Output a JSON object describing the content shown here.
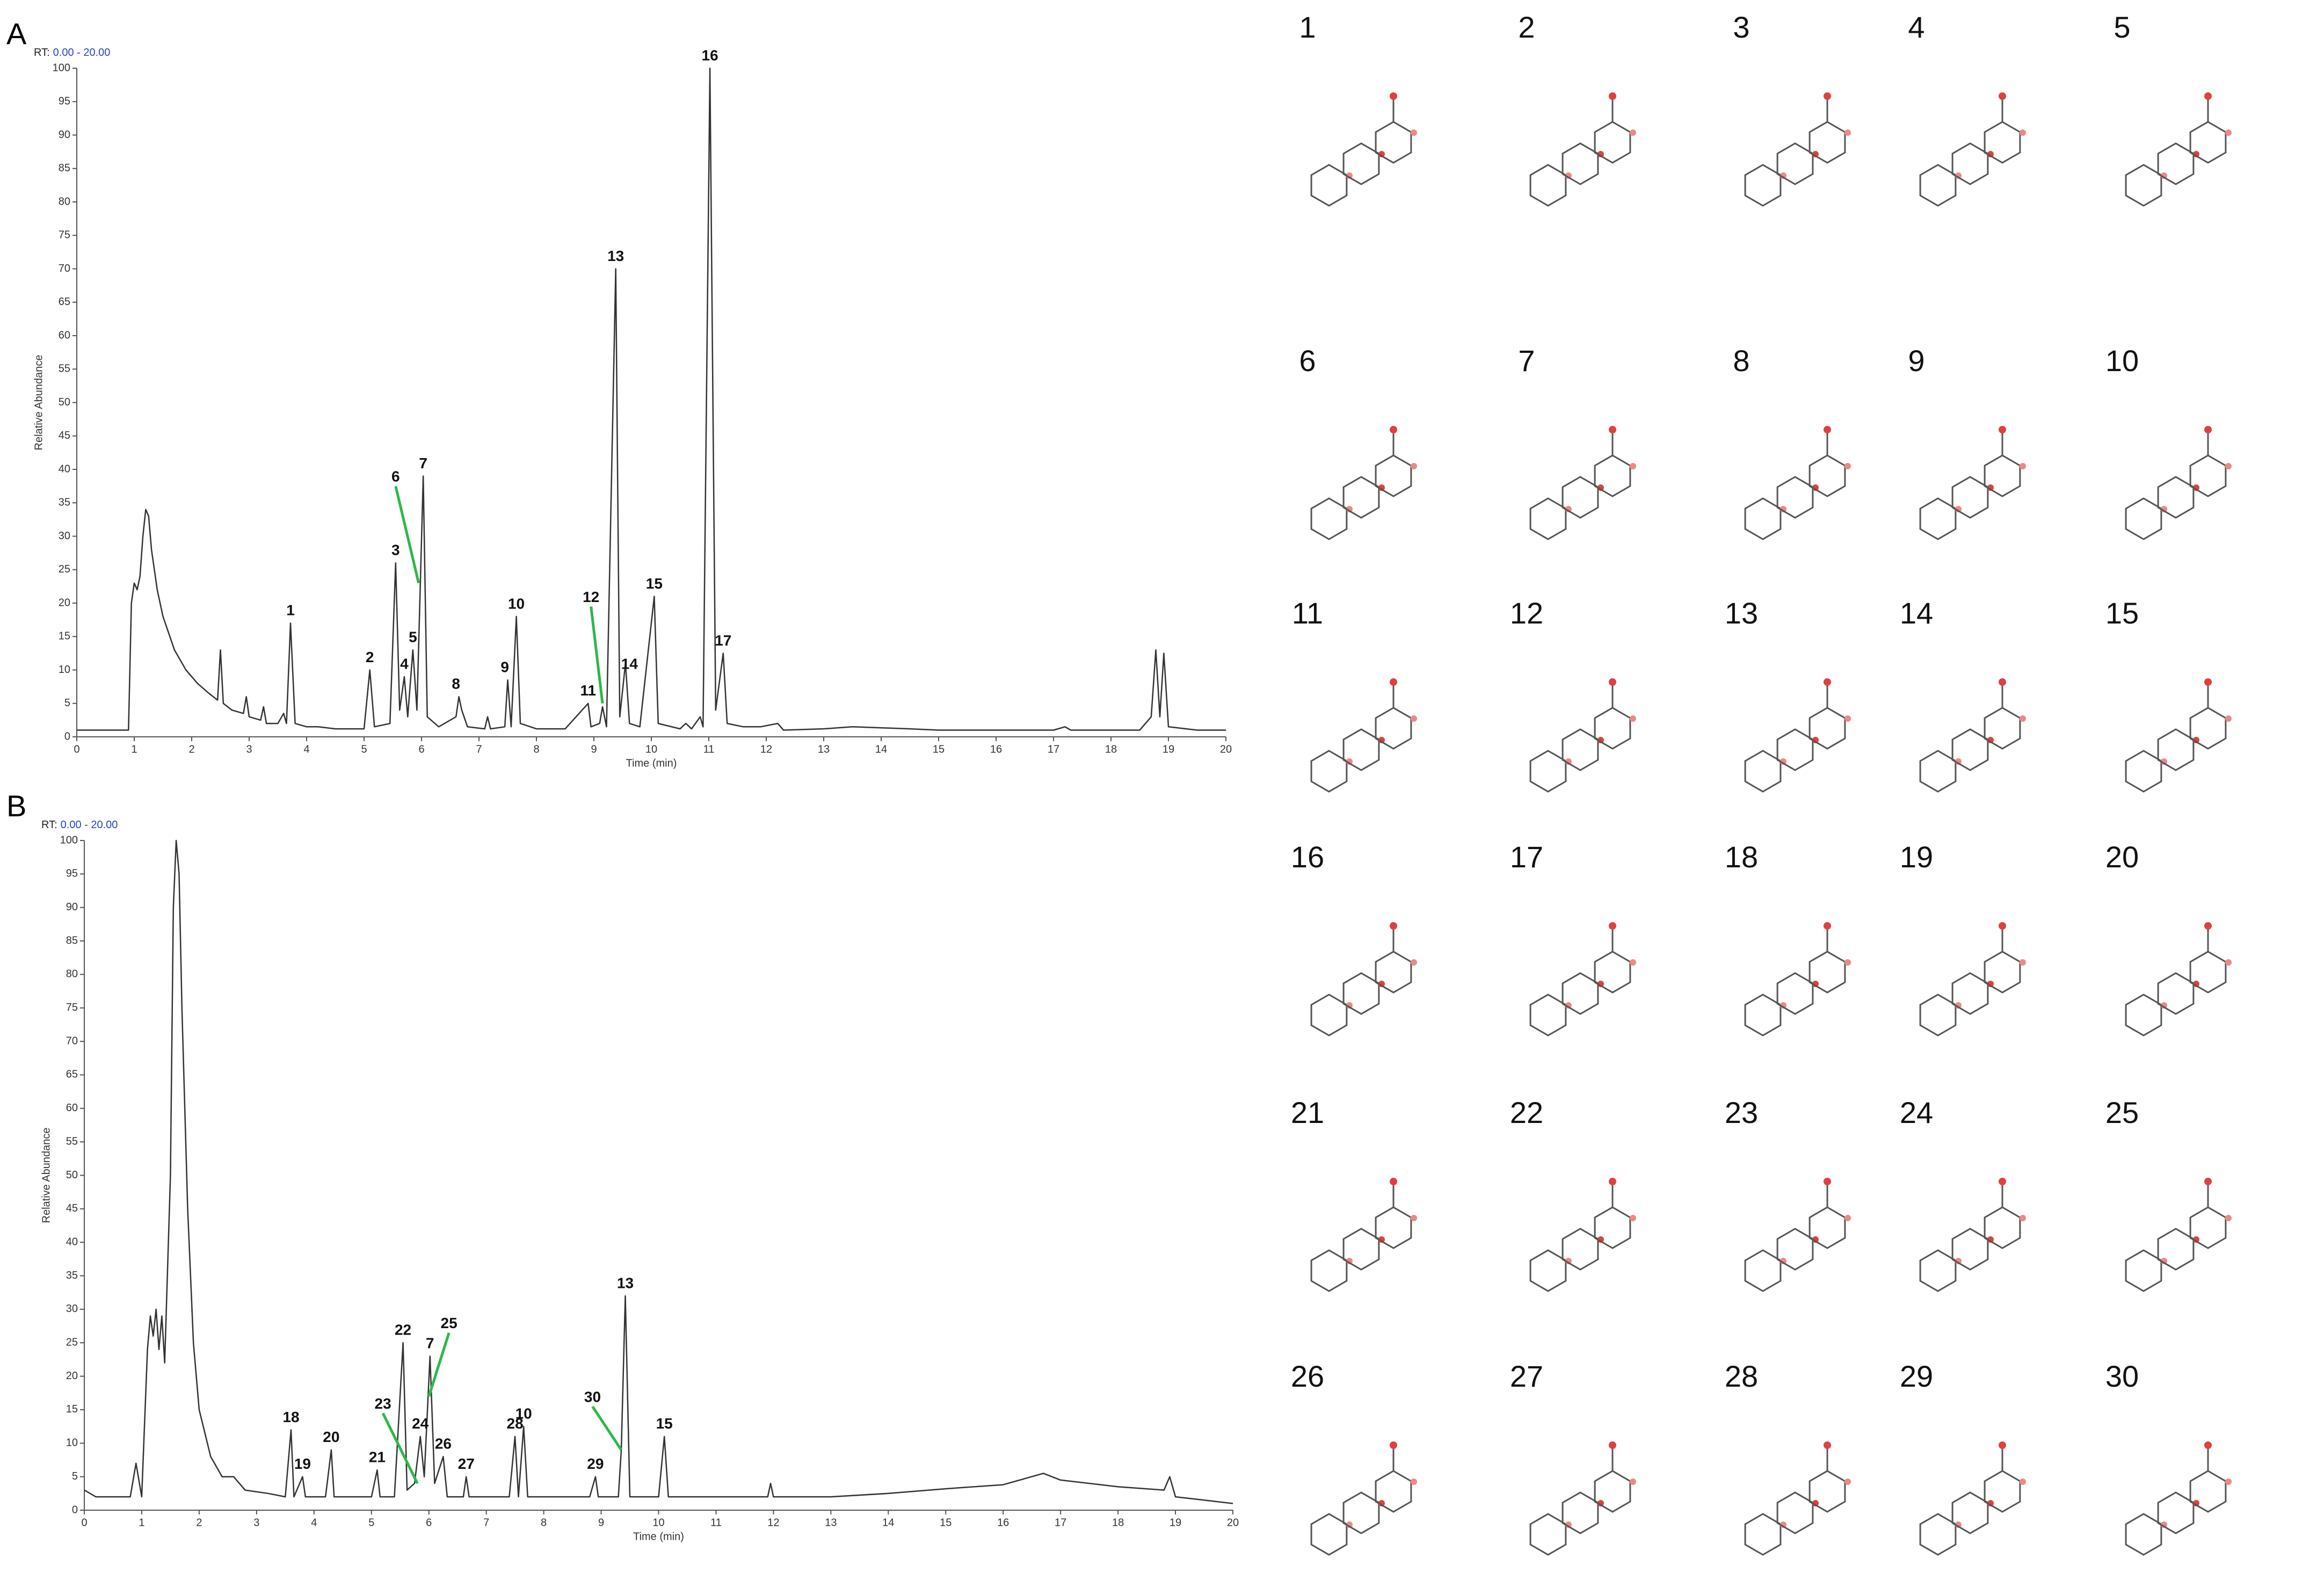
{
  "chart_data": [
    {
      "type": "line",
      "panel": "A",
      "rt_label": "RT:",
      "rt_range": "0.00 - 20.00",
      "xlabel": "Time (min)",
      "ylabel": "Relative Abundance",
      "xlim": [
        0,
        20
      ],
      "ylim": [
        0,
        100
      ],
      "xticks": [
        0,
        1,
        2,
        3,
        4,
        5,
        6,
        7,
        8,
        9,
        10,
        11,
        12,
        13,
        14,
        15,
        16,
        17,
        18,
        19,
        20
      ],
      "yticks": [
        0,
        5,
        10,
        15,
        20,
        25,
        30,
        35,
        40,
        45,
        50,
        55,
        60,
        65,
        70,
        75,
        80,
        85,
        90,
        95,
        100
      ],
      "leader_color": "#2db84b",
      "x": [
        0,
        0.9,
        0.95,
        1.0,
        1.05,
        1.1,
        1.15,
        1.2,
        1.25,
        1.3,
        1.4,
        1.5,
        1.7,
        1.9,
        2.1,
        2.3,
        2.45,
        2.5,
        2.55,
        2.7,
        2.9,
        2.95,
        3.0,
        3.2,
        3.25,
        3.3,
        3.5,
        3.6,
        3.65,
        3.72,
        3.8,
        4.0,
        4.2,
        4.5,
        5.0,
        5.1,
        5.18,
        5.45,
        5.55,
        5.62,
        5.7,
        5.76,
        5.85,
        5.92,
        6.03,
        6.1,
        6.3,
        6.6,
        6.65,
        6.7,
        6.8,
        7.1,
        7.15,
        7.2,
        7.45,
        7.5,
        7.56,
        7.65,
        7.72,
        8.0,
        8.5,
        8.9,
        8.95,
        9.1,
        9.15,
        9.22,
        9.38,
        9.45,
        9.55,
        9.62,
        9.8,
        10.05,
        10.12,
        10.5,
        10.6,
        10.7,
        10.85,
        10.9,
        11.02,
        11.12,
        11.25,
        11.32,
        11.6,
        11.9,
        12.2,
        12.3,
        13,
        13.5,
        14.5,
        15,
        16,
        17,
        17.2,
        17.3,
        18.5,
        18.7,
        18.78,
        18.85,
        18.92,
        19.0,
        19.5,
        20
      ],
      "series": [
        {
          "color": "#333333",
          "values": [
            1,
            1,
            20,
            23,
            22,
            24,
            30,
            34,
            33,
            28,
            22,
            18,
            13,
            10,
            8,
            6.5,
            5.5,
            13,
            5,
            4,
            3.5,
            6,
            3,
            2.5,
            4.5,
            2,
            2,
            3.5,
            2,
            17,
            2,
            1.5,
            1.5,
            1.2,
            1.2,
            10,
            1.5,
            2,
            26,
            4,
            9,
            3,
            13,
            4,
            39,
            3,
            1.5,
            3,
            6,
            4,
            1.5,
            1.2,
            3,
            1.2,
            1.5,
            8.5,
            1.5,
            18,
            2,
            1.2,
            1.2,
            5,
            1.5,
            2,
            4.5,
            1.5,
            70,
            3,
            11,
            2,
            1.5,
            21,
            2,
            1.2,
            2,
            1.2,
            3,
            1.5,
            100,
            4,
            12.5,
            2,
            1.5,
            1.5,
            2,
            1,
            1.2,
            1.5,
            1.2,
            1,
            1,
            1,
            1.5,
            1,
            1,
            3,
            13,
            3,
            12.5,
            1.5,
            1,
            1
          ]
        }
      ],
      "annotations": [
        {
          "text": "1",
          "x": 3.72,
          "y": 17
        },
        {
          "text": "2",
          "x": 5.1,
          "y": 10
        },
        {
          "text": "3",
          "x": 5.55,
          "y": 26
        },
        {
          "text": "4",
          "x": 5.7,
          "y": 9
        },
        {
          "text": "5",
          "x": 5.85,
          "y": 13
        },
        {
          "text": "6",
          "x": 5.55,
          "y": 37,
          "target": [
            5.95,
            23
          ]
        },
        {
          "text": "7",
          "x": 6.03,
          "y": 39
        },
        {
          "text": "8",
          "x": 6.6,
          "y": 6
        },
        {
          "text": "9",
          "x": 7.45,
          "y": 8.5
        },
        {
          "text": "10",
          "x": 7.65,
          "y": 18
        },
        {
          "text": "11",
          "x": 8.9,
          "y": 5
        },
        {
          "text": "12",
          "x": 8.95,
          "y": 19,
          "target": [
            9.15,
            5
          ]
        },
        {
          "text": "13",
          "x": 9.38,
          "y": 70
        },
        {
          "text": "14",
          "x": 9.62,
          "y": 9
        },
        {
          "text": "15",
          "x": 10.05,
          "y": 21
        },
        {
          "text": "16",
          "x": 11.02,
          "y": 100
        },
        {
          "text": "17",
          "x": 11.25,
          "y": 12.5
        }
      ]
    },
    {
      "type": "line",
      "panel": "B",
      "rt_label": "RT:",
      "rt_range": "0.00 - 20.00",
      "xlabel": "Time (min)",
      "ylabel": "Relative Abundance",
      "xlim": [
        0,
        20
      ],
      "ylim": [
        0,
        100
      ],
      "xticks": [
        0,
        1,
        2,
        3,
        4,
        5,
        6,
        7,
        8,
        9,
        10,
        11,
        12,
        13,
        14,
        15,
        16,
        17,
        18,
        19,
        20
      ],
      "yticks": [
        0,
        5,
        10,
        15,
        20,
        25,
        30,
        35,
        40,
        45,
        50,
        55,
        60,
        65,
        70,
        75,
        80,
        85,
        90,
        95,
        100
      ],
      "leader_color": "#2db84b",
      "x": [
        0,
        0.2,
        0.8,
        0.9,
        1.0,
        1.1,
        1.15,
        1.2,
        1.25,
        1.3,
        1.35,
        1.4,
        1.5,
        1.55,
        1.6,
        1.65,
        1.7,
        1.8,
        1.9,
        2.0,
        2.2,
        2.4,
        2.6,
        2.8,
        3.2,
        3.5,
        3.6,
        3.65,
        3.8,
        3.85,
        4.2,
        4.3,
        4.35,
        5.0,
        5.1,
        5.15,
        5.4,
        5.55,
        5.62,
        5.75,
        5.85,
        5.92,
        6.02,
        6.1,
        6.25,
        6.32,
        6.6,
        6.65,
        6.7,
        7.4,
        7.5,
        7.56,
        7.65,
        7.72,
        8.8,
        8.9,
        8.95,
        9.3,
        9.35,
        9.42,
        9.5,
        10.0,
        10.1,
        10.17,
        11,
        11.9,
        11.95,
        12,
        13,
        14,
        15,
        16,
        16.7,
        17,
        18,
        18.8,
        18.9,
        19,
        19.5,
        20
      ],
      "series": [
        {
          "color": "#333333",
          "values": [
            3,
            2,
            2,
            7,
            2,
            24,
            29,
            26,
            30,
            24,
            29,
            22,
            50,
            90,
            100,
            95,
            75,
            45,
            25,
            15,
            8,
            5,
            5,
            3,
            2.5,
            2,
            12,
            2,
            5,
            2,
            2,
            9,
            2,
            2,
            6,
            2,
            2,
            25,
            3,
            4,
            11,
            5,
            23,
            4,
            8,
            2,
            2,
            5,
            2,
            2,
            11,
            2,
            12.5,
            2,
            2,
            5,
            2,
            2,
            9,
            32,
            2,
            2,
            11,
            2,
            2,
            2,
            4,
            2,
            2,
            2.5,
            3.2,
            3.8,
            5.5,
            4.5,
            3.5,
            3,
            5,
            2,
            1.5,
            1
          ]
        }
      ],
      "annotations": [
        {
          "text": "18",
          "x": 3.6,
          "y": 12
        },
        {
          "text": "19",
          "x": 3.8,
          "y": 5
        },
        {
          "text": "20",
          "x": 4.3,
          "y": 9
        },
        {
          "text": "21",
          "x": 5.1,
          "y": 6
        },
        {
          "text": "22",
          "x": 5.55,
          "y": 25
        },
        {
          "text": "23",
          "x": 5.2,
          "y": 14,
          "target": [
            5.8,
            4
          ]
        },
        {
          "text": "24",
          "x": 5.85,
          "y": 11
        },
        {
          "text": "7",
          "x": 6.02,
          "y": 23
        },
        {
          "text": "25",
          "x": 6.35,
          "y": 26,
          "target": [
            6.0,
            17
          ]
        },
        {
          "text": "26",
          "x": 6.25,
          "y": 8
        },
        {
          "text": "27",
          "x": 6.65,
          "y": 5
        },
        {
          "text": "28",
          "x": 7.5,
          "y": 11
        },
        {
          "text": "10",
          "x": 7.65,
          "y": 12.5
        },
        {
          "text": "29",
          "x": 8.9,
          "y": 5
        },
        {
          "text": "30",
          "x": 8.85,
          "y": 15,
          "target": [
            9.35,
            9
          ]
        },
        {
          "text": "13",
          "x": 9.42,
          "y": 32
        },
        {
          "text": "15",
          "x": 10.1,
          "y": 11
        }
      ]
    }
  ],
  "structures": {
    "labels": [
      "1",
      "2",
      "3",
      "4",
      "5",
      "6",
      "7",
      "8",
      "9",
      "10",
      "11",
      "12",
      "13",
      "14",
      "15",
      "16",
      "17",
      "18",
      "19",
      "20",
      "21",
      "22",
      "23",
      "24",
      "25",
      "26",
      "27",
      "28",
      "29",
      "30"
    ]
  }
}
